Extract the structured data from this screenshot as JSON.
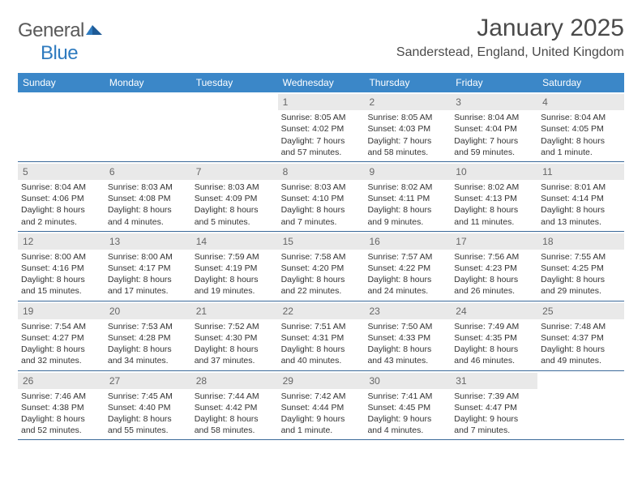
{
  "logo": {
    "word1": "General",
    "word2": "Blue"
  },
  "title": "January 2025",
  "location": "Sanderstead, England, United Kingdom",
  "colors": {
    "header_bar": "#3b87c8",
    "week_divider": "#3b6a9a",
    "daynum_bg": "#e9e9e9",
    "text": "#333333",
    "logo_gray": "#5a5a5a",
    "logo_blue": "#2f7bbf"
  },
  "weekdays": [
    "Sunday",
    "Monday",
    "Tuesday",
    "Wednesday",
    "Thursday",
    "Friday",
    "Saturday"
  ],
  "weeks": [
    [
      {
        "n": "",
        "sr": "",
        "ss": "",
        "dl": ""
      },
      {
        "n": "",
        "sr": "",
        "ss": "",
        "dl": ""
      },
      {
        "n": "",
        "sr": "",
        "ss": "",
        "dl": ""
      },
      {
        "n": "1",
        "sr": "Sunrise: 8:05 AM",
        "ss": "Sunset: 4:02 PM",
        "dl": "Daylight: 7 hours and 57 minutes."
      },
      {
        "n": "2",
        "sr": "Sunrise: 8:05 AM",
        "ss": "Sunset: 4:03 PM",
        "dl": "Daylight: 7 hours and 58 minutes."
      },
      {
        "n": "3",
        "sr": "Sunrise: 8:04 AM",
        "ss": "Sunset: 4:04 PM",
        "dl": "Daylight: 7 hours and 59 minutes."
      },
      {
        "n": "4",
        "sr": "Sunrise: 8:04 AM",
        "ss": "Sunset: 4:05 PM",
        "dl": "Daylight: 8 hours and 1 minute."
      }
    ],
    [
      {
        "n": "5",
        "sr": "Sunrise: 8:04 AM",
        "ss": "Sunset: 4:06 PM",
        "dl": "Daylight: 8 hours and 2 minutes."
      },
      {
        "n": "6",
        "sr": "Sunrise: 8:03 AM",
        "ss": "Sunset: 4:08 PM",
        "dl": "Daylight: 8 hours and 4 minutes."
      },
      {
        "n": "7",
        "sr": "Sunrise: 8:03 AM",
        "ss": "Sunset: 4:09 PM",
        "dl": "Daylight: 8 hours and 5 minutes."
      },
      {
        "n": "8",
        "sr": "Sunrise: 8:03 AM",
        "ss": "Sunset: 4:10 PM",
        "dl": "Daylight: 8 hours and 7 minutes."
      },
      {
        "n": "9",
        "sr": "Sunrise: 8:02 AM",
        "ss": "Sunset: 4:11 PM",
        "dl": "Daylight: 8 hours and 9 minutes."
      },
      {
        "n": "10",
        "sr": "Sunrise: 8:02 AM",
        "ss": "Sunset: 4:13 PM",
        "dl": "Daylight: 8 hours and 11 minutes."
      },
      {
        "n": "11",
        "sr": "Sunrise: 8:01 AM",
        "ss": "Sunset: 4:14 PM",
        "dl": "Daylight: 8 hours and 13 minutes."
      }
    ],
    [
      {
        "n": "12",
        "sr": "Sunrise: 8:00 AM",
        "ss": "Sunset: 4:16 PM",
        "dl": "Daylight: 8 hours and 15 minutes."
      },
      {
        "n": "13",
        "sr": "Sunrise: 8:00 AM",
        "ss": "Sunset: 4:17 PM",
        "dl": "Daylight: 8 hours and 17 minutes."
      },
      {
        "n": "14",
        "sr": "Sunrise: 7:59 AM",
        "ss": "Sunset: 4:19 PM",
        "dl": "Daylight: 8 hours and 19 minutes."
      },
      {
        "n": "15",
        "sr": "Sunrise: 7:58 AM",
        "ss": "Sunset: 4:20 PM",
        "dl": "Daylight: 8 hours and 22 minutes."
      },
      {
        "n": "16",
        "sr": "Sunrise: 7:57 AM",
        "ss": "Sunset: 4:22 PM",
        "dl": "Daylight: 8 hours and 24 minutes."
      },
      {
        "n": "17",
        "sr": "Sunrise: 7:56 AM",
        "ss": "Sunset: 4:23 PM",
        "dl": "Daylight: 8 hours and 26 minutes."
      },
      {
        "n": "18",
        "sr": "Sunrise: 7:55 AM",
        "ss": "Sunset: 4:25 PM",
        "dl": "Daylight: 8 hours and 29 minutes."
      }
    ],
    [
      {
        "n": "19",
        "sr": "Sunrise: 7:54 AM",
        "ss": "Sunset: 4:27 PM",
        "dl": "Daylight: 8 hours and 32 minutes."
      },
      {
        "n": "20",
        "sr": "Sunrise: 7:53 AM",
        "ss": "Sunset: 4:28 PM",
        "dl": "Daylight: 8 hours and 34 minutes."
      },
      {
        "n": "21",
        "sr": "Sunrise: 7:52 AM",
        "ss": "Sunset: 4:30 PM",
        "dl": "Daylight: 8 hours and 37 minutes."
      },
      {
        "n": "22",
        "sr": "Sunrise: 7:51 AM",
        "ss": "Sunset: 4:31 PM",
        "dl": "Daylight: 8 hours and 40 minutes."
      },
      {
        "n": "23",
        "sr": "Sunrise: 7:50 AM",
        "ss": "Sunset: 4:33 PM",
        "dl": "Daylight: 8 hours and 43 minutes."
      },
      {
        "n": "24",
        "sr": "Sunrise: 7:49 AM",
        "ss": "Sunset: 4:35 PM",
        "dl": "Daylight: 8 hours and 46 minutes."
      },
      {
        "n": "25",
        "sr": "Sunrise: 7:48 AM",
        "ss": "Sunset: 4:37 PM",
        "dl": "Daylight: 8 hours and 49 minutes."
      }
    ],
    [
      {
        "n": "26",
        "sr": "Sunrise: 7:46 AM",
        "ss": "Sunset: 4:38 PM",
        "dl": "Daylight: 8 hours and 52 minutes."
      },
      {
        "n": "27",
        "sr": "Sunrise: 7:45 AM",
        "ss": "Sunset: 4:40 PM",
        "dl": "Daylight: 8 hours and 55 minutes."
      },
      {
        "n": "28",
        "sr": "Sunrise: 7:44 AM",
        "ss": "Sunset: 4:42 PM",
        "dl": "Daylight: 8 hours and 58 minutes."
      },
      {
        "n": "29",
        "sr": "Sunrise: 7:42 AM",
        "ss": "Sunset: 4:44 PM",
        "dl": "Daylight: 9 hours and 1 minute."
      },
      {
        "n": "30",
        "sr": "Sunrise: 7:41 AM",
        "ss": "Sunset: 4:45 PM",
        "dl": "Daylight: 9 hours and 4 minutes."
      },
      {
        "n": "31",
        "sr": "Sunrise: 7:39 AM",
        "ss": "Sunset: 4:47 PM",
        "dl": "Daylight: 9 hours and 7 minutes."
      },
      {
        "n": "",
        "sr": "",
        "ss": "",
        "dl": ""
      }
    ]
  ]
}
